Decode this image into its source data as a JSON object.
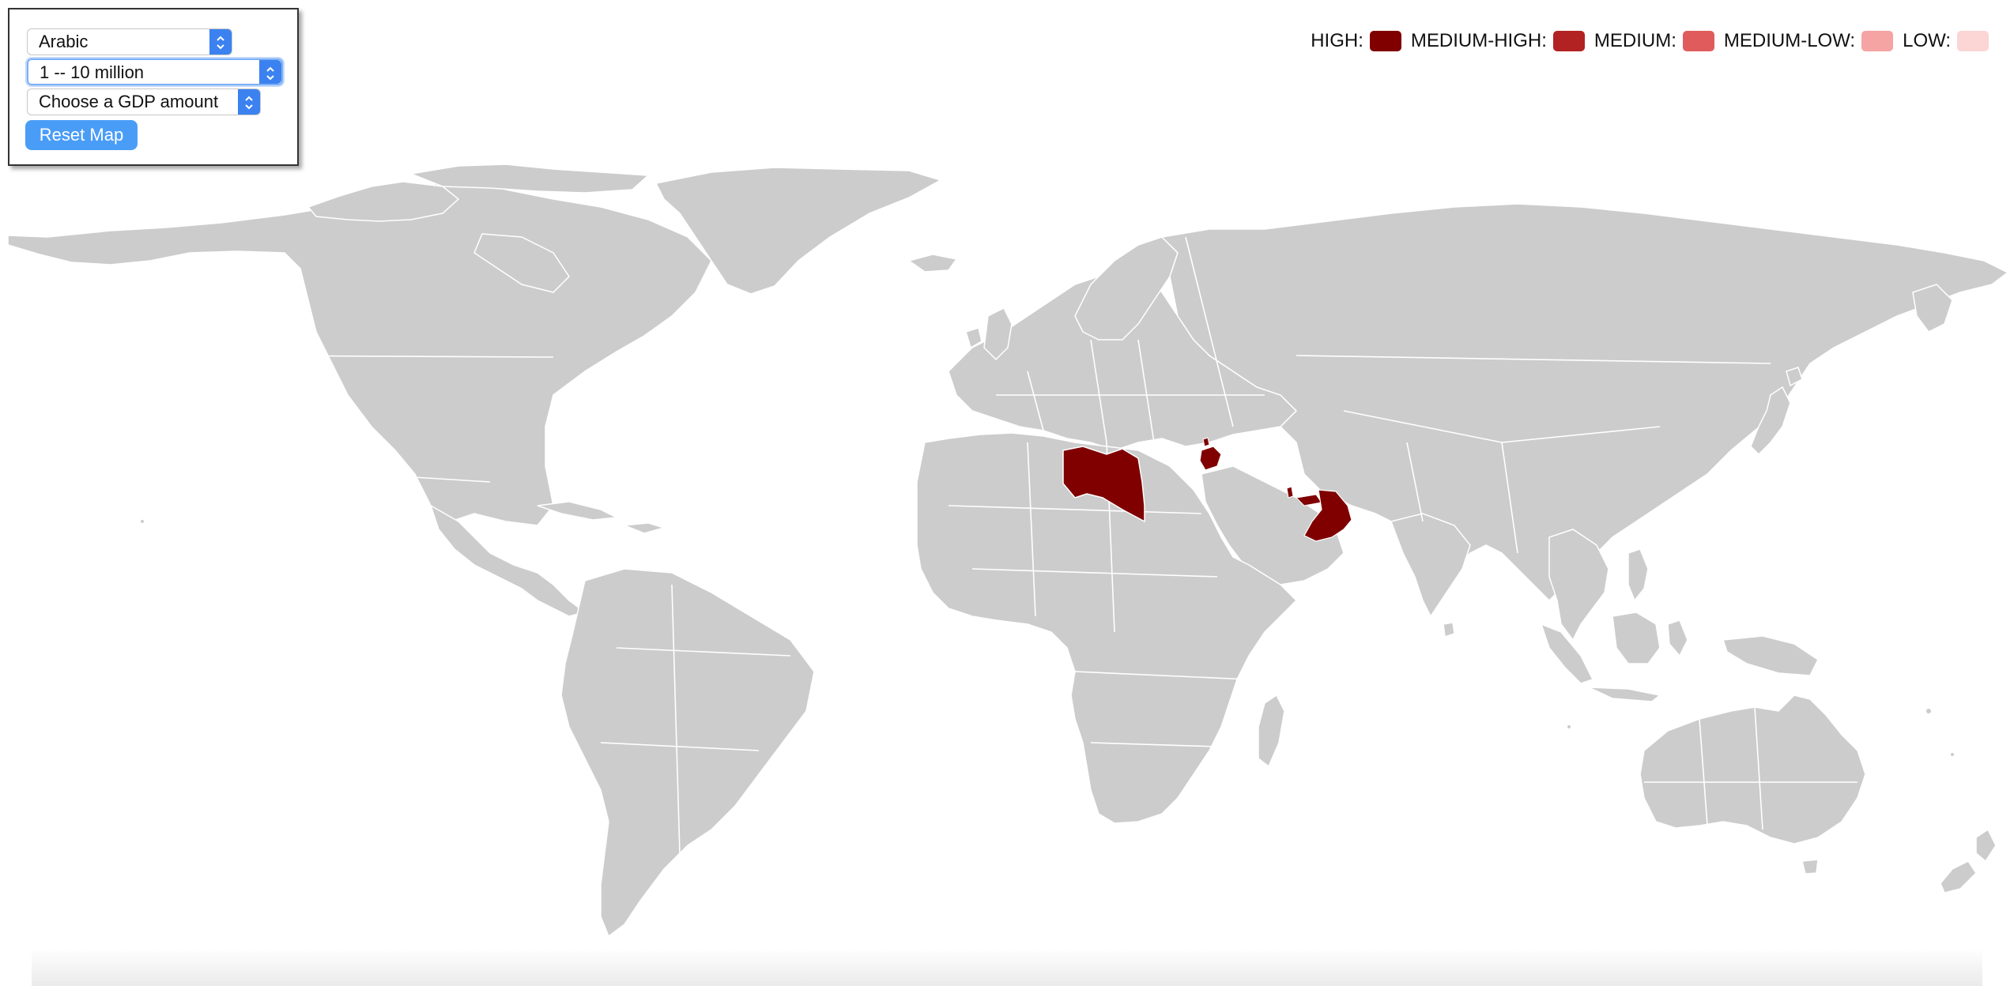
{
  "controls": {
    "language_select": {
      "value": "Arabic"
    },
    "population_select": {
      "value": "1 -- 10 million"
    },
    "gdp_select": {
      "value": "Choose a GDP amount"
    },
    "reset_button": "Reset Map"
  },
  "legend": [
    {
      "label": "HIGH:",
      "color": "#800000"
    },
    {
      "label": "MEDIUM-HIGH:",
      "color": "#b22222"
    },
    {
      "label": "MEDIUM:",
      "color": "#e05c5c"
    },
    {
      "label": "MEDIUM-LOW:",
      "color": "#f5a3a3"
    },
    {
      "label": "LOW:",
      "color": "#fcd5d5"
    }
  ],
  "map": {
    "base_color": "#cccccc",
    "highlighted_countries": [
      {
        "name": "Libya",
        "level": "HIGH",
        "color": "#800000"
      },
      {
        "name": "Jordan",
        "level": "HIGH",
        "color": "#800000"
      },
      {
        "name": "Oman",
        "level": "HIGH",
        "color": "#800000"
      },
      {
        "name": "United Arab Emirates",
        "level": "HIGH",
        "color": "#800000"
      },
      {
        "name": "Qatar",
        "level": "HIGH",
        "color": "#800000"
      },
      {
        "name": "Lebanon",
        "level": "HIGH",
        "color": "#800000"
      }
    ]
  }
}
